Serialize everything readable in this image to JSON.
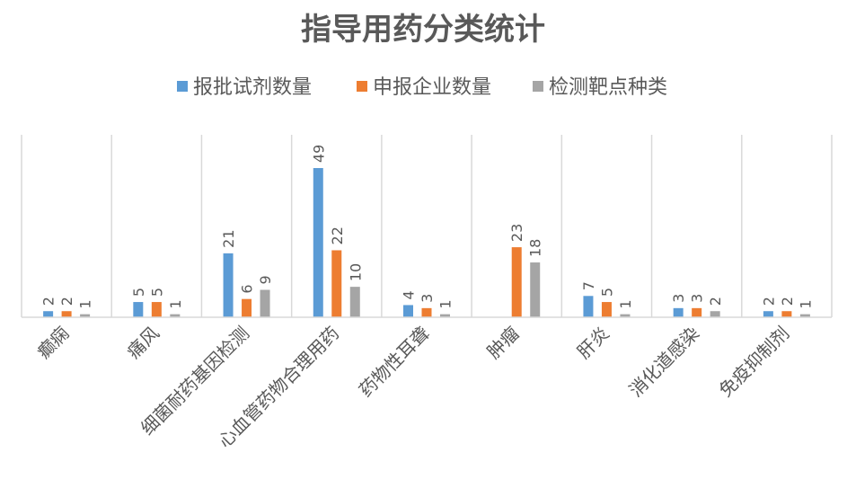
{
  "chart_data": {
    "type": "bar",
    "title": "指导用药分类统计",
    "categories": [
      "癫痫",
      "痛风",
      "细菌耐药基因检测",
      "心血管药物合理用药",
      "药物性耳聋",
      "肿瘤",
      "肝炎",
      "消化道感染",
      "免疫抑制剂"
    ],
    "series": [
      {
        "name": "报批试剂数量",
        "color": "#5b9bd5",
        "values": [
          2,
          5,
          21,
          49,
          4,
          null,
          7,
          3,
          2
        ]
      },
      {
        "name": "申报企业数量",
        "color": "#ed7d31",
        "values": [
          2,
          5,
          6,
          22,
          3,
          23,
          5,
          3,
          2
        ]
      },
      {
        "name": "检测靶点种类",
        "color": "#a5a5a5",
        "values": [
          1,
          1,
          9,
          10,
          1,
          18,
          1,
          2,
          1
        ]
      }
    ],
    "ylim": [
      0,
      60
    ],
    "grid": "vertical category separators",
    "legend_position": "top"
  }
}
